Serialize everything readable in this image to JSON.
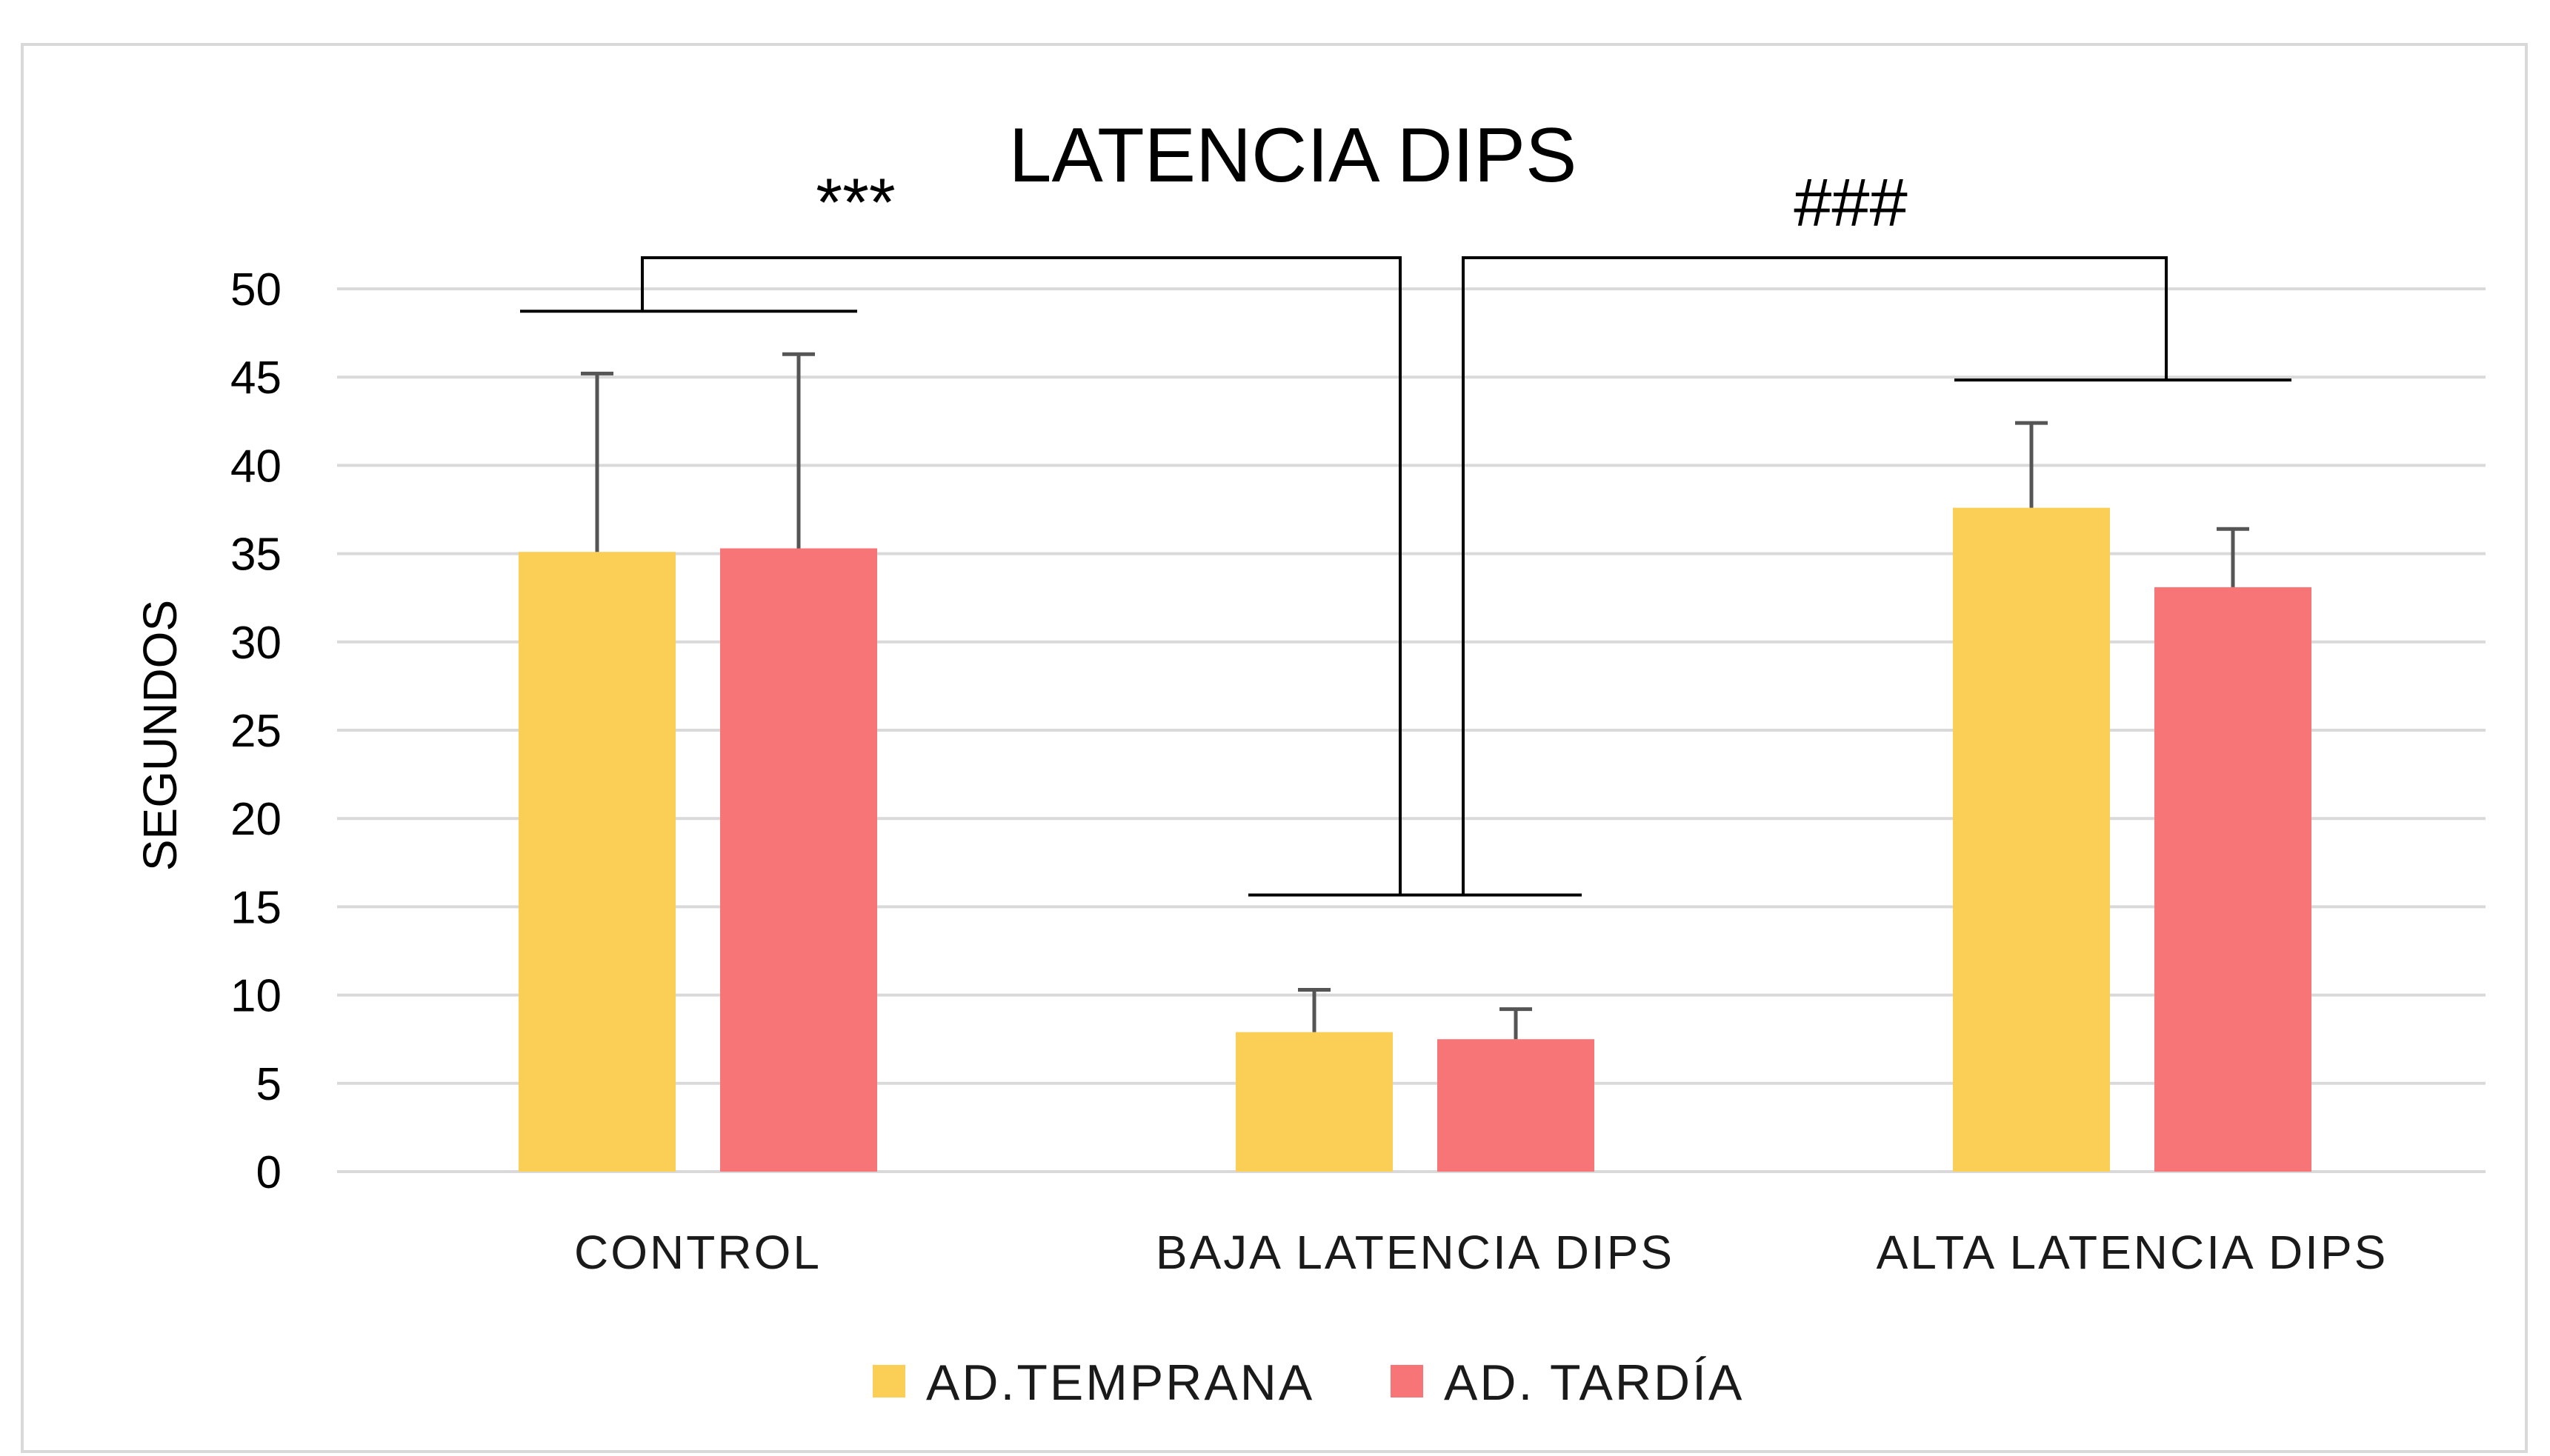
{
  "chart_data": {
    "type": "bar",
    "title": "LATENCIA DIPS",
    "xlabel": "",
    "ylabel": "SEGUNDOS",
    "ylim": [
      0,
      50
    ],
    "yticks": [
      0,
      5,
      10,
      15,
      20,
      25,
      30,
      35,
      40,
      45,
      50
    ],
    "grid": true,
    "legend_position": "bottom",
    "categories": [
      "CONTROL",
      "BAJA LATENCIA DIPS",
      "ALTA LATENCIA DIPS"
    ],
    "series": [
      {
        "name": "AD.TEMPRANA",
        "color": "#fbcf55",
        "values": [
          35.1,
          7.9,
          37.6
        ],
        "errors": [
          10.1,
          2.4,
          4.8
        ]
      },
      {
        "name": "AD. TARDÍA",
        "color": "#f87577",
        "values": [
          35.3,
          7.5,
          33.1
        ],
        "errors": [
          11.0,
          1.7,
          3.3
        ]
      }
    ],
    "annotations": [
      {
        "text": "***",
        "from_category": 0,
        "to_category": 1
      },
      {
        "text": "###",
        "from_category": 1,
        "to_category": 2
      }
    ]
  }
}
